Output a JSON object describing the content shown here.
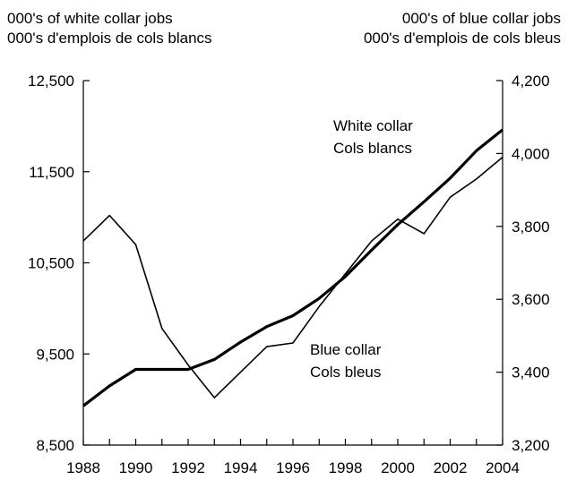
{
  "chart_data": {
    "type": "line",
    "left_axis_title": [
      "000's of white collar jobs",
      "000's d'emplois de cols blancs"
    ],
    "right_axis_title": [
      "000's of blue collar jobs",
      "000's d'emplois de cols bleus"
    ],
    "x": [
      1988,
      1989,
      1990,
      1991,
      1992,
      1993,
      1994,
      1995,
      1996,
      1997,
      1998,
      1999,
      2000,
      2001,
      2002,
      2003,
      2004
    ],
    "x_ticks": [
      "1988",
      "1990",
      "1992",
      "1994",
      "1996",
      "1998",
      "2000",
      "2002",
      "2004"
    ],
    "xlim": [
      1988,
      2004
    ],
    "ylim_left": [
      8500,
      12500
    ],
    "yticks_left": [
      "12,500",
      "11,500",
      "10,500",
      "9,500",
      "8,500"
    ],
    "ylim_right": [
      3200,
      4200
    ],
    "yticks_right": [
      "4,200",
      "4,000",
      "3,800",
      "3,600",
      "3,400",
      "3,200"
    ],
    "series": [
      {
        "name": "White collar / Cols blancs",
        "label_lines": [
          "White collar",
          "Cols blancs"
        ],
        "axis": "left",
        "color": "#000000",
        "style": "thick",
        "values": [
          8930,
          9150,
          9330,
          9330,
          9330,
          9440,
          9630,
          9800,
          9920,
          10110,
          10350,
          10640,
          10920,
          11170,
          11430,
          11730,
          11960
        ]
      },
      {
        "name": "Blue collar / Cols bleus",
        "label_lines": [
          "Blue collar",
          "Cols bleus"
        ],
        "axis": "right",
        "color": "#000000",
        "style": "thin",
        "values": [
          3760,
          3830,
          3750,
          3520,
          3420,
          3330,
          3400,
          3470,
          3480,
          3580,
          3670,
          3760,
          3820,
          3780,
          3880,
          3930,
          3990
        ]
      }
    ]
  }
}
